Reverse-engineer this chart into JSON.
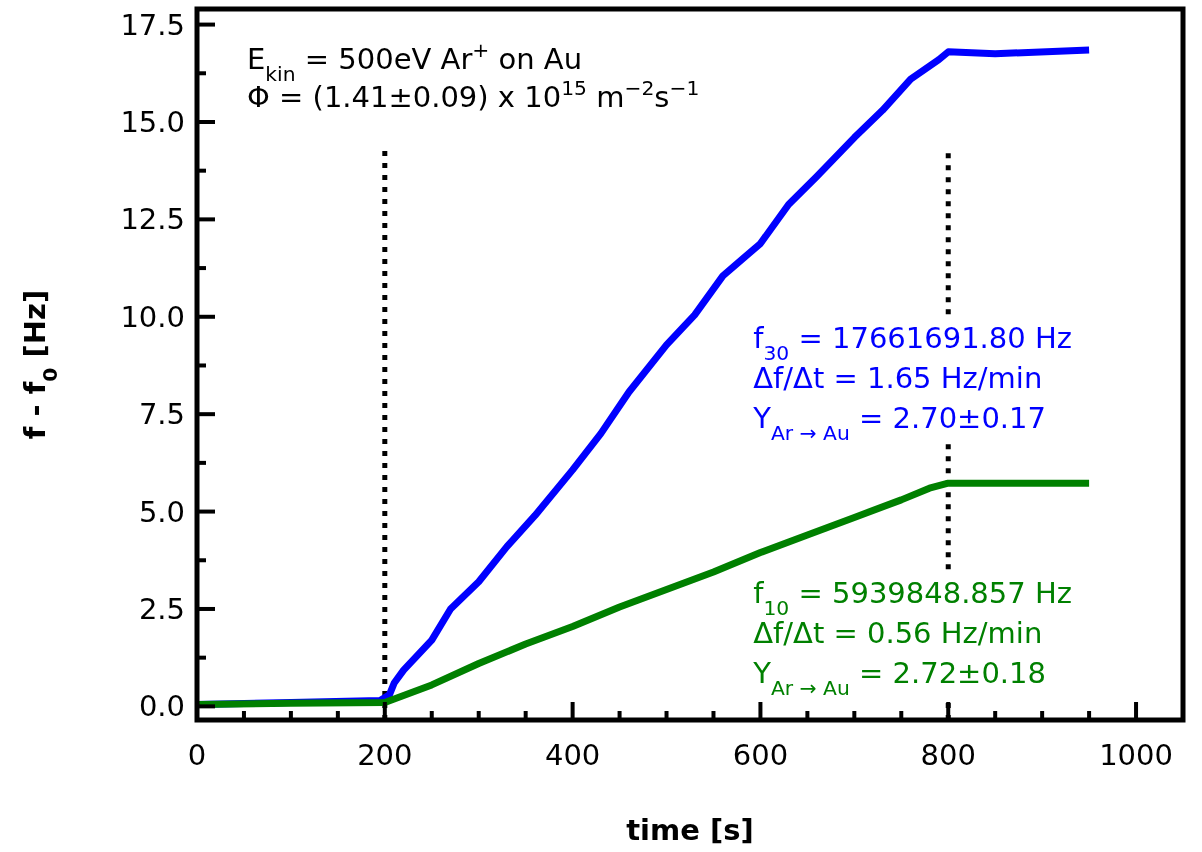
{
  "chart_data": {
    "type": "line",
    "xlabel": "time [s]",
    "ylabel": "f - f$_{0}$ [Hz]",
    "xlim": [
      0,
      1050
    ],
    "ylim": [
      -0.35,
      17.9
    ],
    "xticks": [
      0,
      {
        "value": 50,
        "label": null
      },
      {
        "value": 100,
        "label": null
      },
      {
        "value": 150,
        "label": null
      },
      200,
      {
        "value": 250,
        "label": null
      },
      {
        "value": 300,
        "label": null
      },
      {
        "value": 350,
        "label": null
      },
      400,
      {
        "value": 450,
        "label": null
      },
      {
        "value": 500,
        "label": null
      },
      {
        "value": 550,
        "label": null
      },
      600,
      {
        "value": 650,
        "label": null
      },
      {
        "value": 700,
        "label": null
      },
      {
        "value": 750,
        "label": null
      },
      800,
      {
        "value": 850,
        "label": null
      },
      {
        "value": 900,
        "label": null
      },
      {
        "value": 950,
        "label": null
      },
      1000
    ],
    "yticks": [
      {
        "value": 0,
        "label": "0.0"
      },
      {
        "value": 1.25,
        "label": null
      },
      {
        "value": 2.5,
        "label": "2.5"
      },
      {
        "value": 3.75,
        "label": null
      },
      {
        "value": 5,
        "label": "5.0"
      },
      {
        "value": 6.25,
        "label": null
      },
      {
        "value": 7.5,
        "label": "7.5"
      },
      {
        "value": 8.75,
        "label": null
      },
      {
        "value": 10,
        "label": "10.0"
      },
      {
        "value": 11.25,
        "label": null
      },
      {
        "value": 12.5,
        "label": "12.5"
      },
      {
        "value": 13.75,
        "label": null
      },
      {
        "value": 15,
        "label": "15.0"
      },
      {
        "value": 16.25,
        "label": null
      },
      {
        "value": 17.5,
        "label": "17.5"
      }
    ],
    "grid": false,
    "marker": "none",
    "line_style": "solid",
    "series": [
      {
        "name": "f$_{30}$ = 17661691.80 Hz\nΔf/Δt = 1.65 Hz/min\nY$_{Ar → Au}$ = 2.70±0.17",
        "color": "#0000ff",
        "x": [
          0,
          100,
          195,
          205,
          210,
          220,
          250,
          270,
          300,
          330,
          360,
          400,
          430,
          460,
          500,
          530,
          560,
          600,
          630,
          660,
          700,
          730,
          760,
          790,
          800,
          850,
          950
        ],
        "values": [
          0.05,
          0.1,
          0.15,
          0.3,
          0.6,
          0.93,
          1.7,
          2.5,
          3.2,
          4.1,
          4.9,
          6.07,
          7.0,
          8.07,
          9.28,
          10.05,
          11.05,
          11.88,
          12.88,
          13.6,
          14.6,
          15.3,
          16.1,
          16.6,
          16.8,
          16.75,
          16.85
        ]
      },
      {
        "name": "f$_{10}$ = 5939848.857 Hz\nΔf/Δt = 0.56 Hz/min\nY$_{Ar → Au}$ = 2.72±0.18",
        "color": "#008000",
        "x": [
          0,
          100,
          200,
          250,
          300,
          350,
          400,
          450,
          500,
          550,
          600,
          650,
          700,
          750,
          780,
          800,
          950
        ],
        "values": [
          0.05,
          0.08,
          0.1,
          0.55,
          1.1,
          1.6,
          2.05,
          2.55,
          3.0,
          3.45,
          3.95,
          4.4,
          4.85,
          5.3,
          5.6,
          5.73,
          5.73
        ]
      }
    ],
    "ref_lines": [
      {
        "axis": "x",
        "value": 200,
        "line_style": "dotted",
        "color": "#000000"
      },
      {
        "axis": "x",
        "value": 800,
        "line_style": "dotted",
        "color": "#000000"
      }
    ],
    "annotations": [
      "E$_{kin}$ = 500eV Ar$^{+}$ on Au",
      "Φ = (1.41±0.09) x 10$^{15}$ m$^{−2}$s$^{−1}$"
    ]
  }
}
